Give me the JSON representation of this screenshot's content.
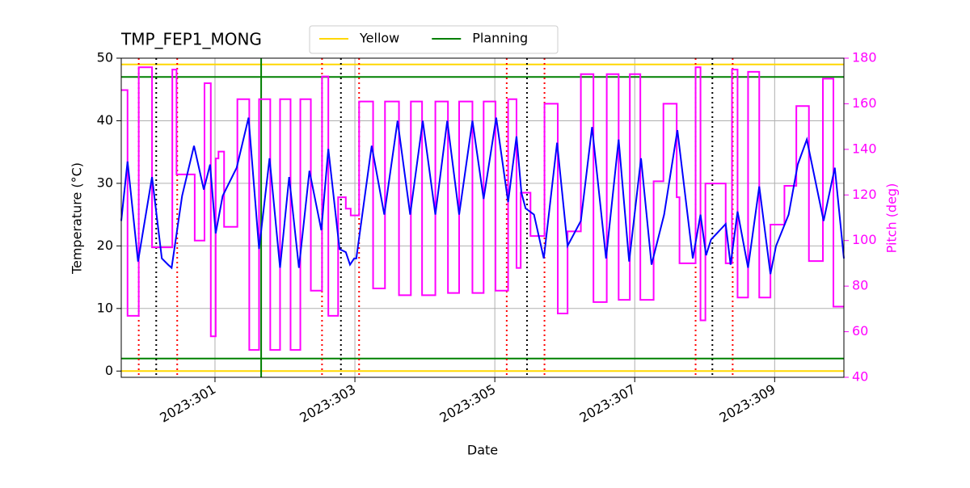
{
  "chart_data": {
    "type": "line",
    "title": "TMP_FEP1_MONG",
    "xlabel": "Date",
    "ylabel": "Temperature (°C)",
    "y2label": "Pitch (deg)",
    "xlim": [
      299.66,
      309.99
    ],
    "ylim": [
      -1,
      50
    ],
    "y2lim": [
      40,
      180
    ],
    "xticks": [
      {
        "value": 301,
        "label": "2023:301"
      },
      {
        "value": 303,
        "label": "2023:303"
      },
      {
        "value": 305,
        "label": "2023:305"
      },
      {
        "value": 307,
        "label": "2023:307"
      },
      {
        "value": 309,
        "label": "2023:309"
      }
    ],
    "yticks": [
      0,
      10,
      20,
      30,
      40,
      50
    ],
    "y2ticks": [
      40,
      60,
      80,
      100,
      120,
      140,
      160,
      180
    ],
    "grid": true,
    "legend": "top",
    "series": [
      {
        "color": "#0000ff",
        "axis": "y",
        "x": [
          299.66,
          299.75,
          299.9,
          300.1,
          300.24,
          300.33,
          300.38,
          300.53,
          300.7,
          300.84,
          300.93,
          301.01,
          301.11,
          301.31,
          301.48,
          301.63,
          301.78,
          301.93,
          302.06,
          302.2,
          302.35,
          302.52,
          302.62,
          302.78,
          302.87,
          302.93,
          302.99,
          303.02,
          303.24,
          303.42,
          303.61,
          303.79,
          303.97,
          304.15,
          304.32,
          304.49,
          304.68,
          304.84,
          305.02,
          305.19,
          305.31,
          305.38,
          305.44,
          305.56,
          305.7,
          305.89,
          306.04,
          306.23,
          306.39,
          306.59,
          306.77,
          306.92,
          307.09,
          307.24,
          307.42,
          307.61,
          307.83,
          307.94,
          308.02,
          308.09,
          308.3,
          308.37,
          308.47,
          308.62,
          308.78,
          308.94,
          309.02,
          309.2,
          309.33,
          309.46,
          309.7,
          309.86,
          309.99
        ],
        "values": [
          24,
          33.5,
          17.5,
          31,
          18,
          17,
          16.5,
          28,
          36,
          29,
          33,
          22,
          28,
          32.5,
          40.5,
          19.5,
          34,
          16.5,
          31,
          16.5,
          32,
          22.5,
          35.5,
          19.5,
          19,
          17,
          18,
          18,
          36,
          25,
          40,
          25,
          40,
          25,
          40,
          25,
          40,
          27.5,
          40.5,
          27,
          37.5,
          28.5,
          26,
          25,
          18,
          36.5,
          20,
          24,
          39,
          18,
          37,
          17.5,
          34,
          17,
          25,
          38.5,
          18,
          25,
          18.5,
          21,
          23.5,
          17,
          25.5,
          16.5,
          29.5,
          15.5,
          20,
          25,
          33,
          37,
          24,
          32.5,
          18
        ]
      },
      {
        "color": "#ff00ff",
        "axis": "y2",
        "step": "post",
        "x": [
          299.66,
          299.75,
          299.91,
          300.1,
          300.39,
          300.45,
          300.71,
          300.85,
          300.94,
          301.01,
          301.05,
          301.13,
          301.32,
          301.49,
          301.63,
          301.79,
          301.93,
          302.08,
          302.22,
          302.37,
          302.53,
          302.62,
          302.76,
          302.87,
          302.94,
          303.06,
          303.26,
          303.43,
          303.63,
          303.8,
          303.96,
          304.15,
          304.33,
          304.49,
          304.68,
          304.84,
          305.01,
          305.19,
          305.31,
          305.37,
          305.51,
          305.71,
          305.9,
          306.04,
          306.23,
          306.41,
          306.6,
          306.77,
          306.93,
          307.08,
          307.27,
          307.41,
          307.6,
          307.64,
          307.87,
          307.94,
          308.01,
          308.3,
          308.39,
          308.47,
          308.62,
          308.78,
          308.94,
          309.14,
          309.31,
          309.49,
          309.69,
          309.84
        ],
        "values": [
          166,
          67,
          176,
          97,
          175,
          129,
          100,
          169,
          58,
          136,
          139,
          106,
          162,
          52,
          162,
          52,
          162,
          52,
          162,
          78,
          172,
          67,
          119,
          114,
          111,
          161,
          79,
          161,
          76,
          161,
          76,
          161,
          77,
          161,
          77,
          161,
          78,
          162,
          88,
          121,
          102,
          160,
          68,
          104,
          173,
          73,
          173,
          74,
          173,
          74,
          126,
          160,
          119,
          90,
          176,
          65,
          125,
          90,
          175,
          75,
          174,
          75,
          107,
          124,
          159,
          91,
          171,
          71
        ]
      }
    ],
    "limits": [
      {
        "name": "Yellow",
        "color": "#ffd700",
        "values": [
          0,
          49
        ]
      },
      {
        "name": "Planning",
        "color": "#008000",
        "values": [
          2,
          47
        ]
      }
    ],
    "vlines": [
      {
        "color": "#ff0000",
        "style": "dotted",
        "x": [
          299.91,
          300.46,
          302.53,
          303.06,
          305.17,
          305.71,
          307.87,
          308.4
        ]
      },
      {
        "color": "#000000",
        "style": "dotted",
        "x": [
          300.16,
          302.8,
          305.46,
          308.11
        ]
      },
      {
        "color": "#008000",
        "style": "solid",
        "x": [
          301.66
        ]
      }
    ]
  }
}
